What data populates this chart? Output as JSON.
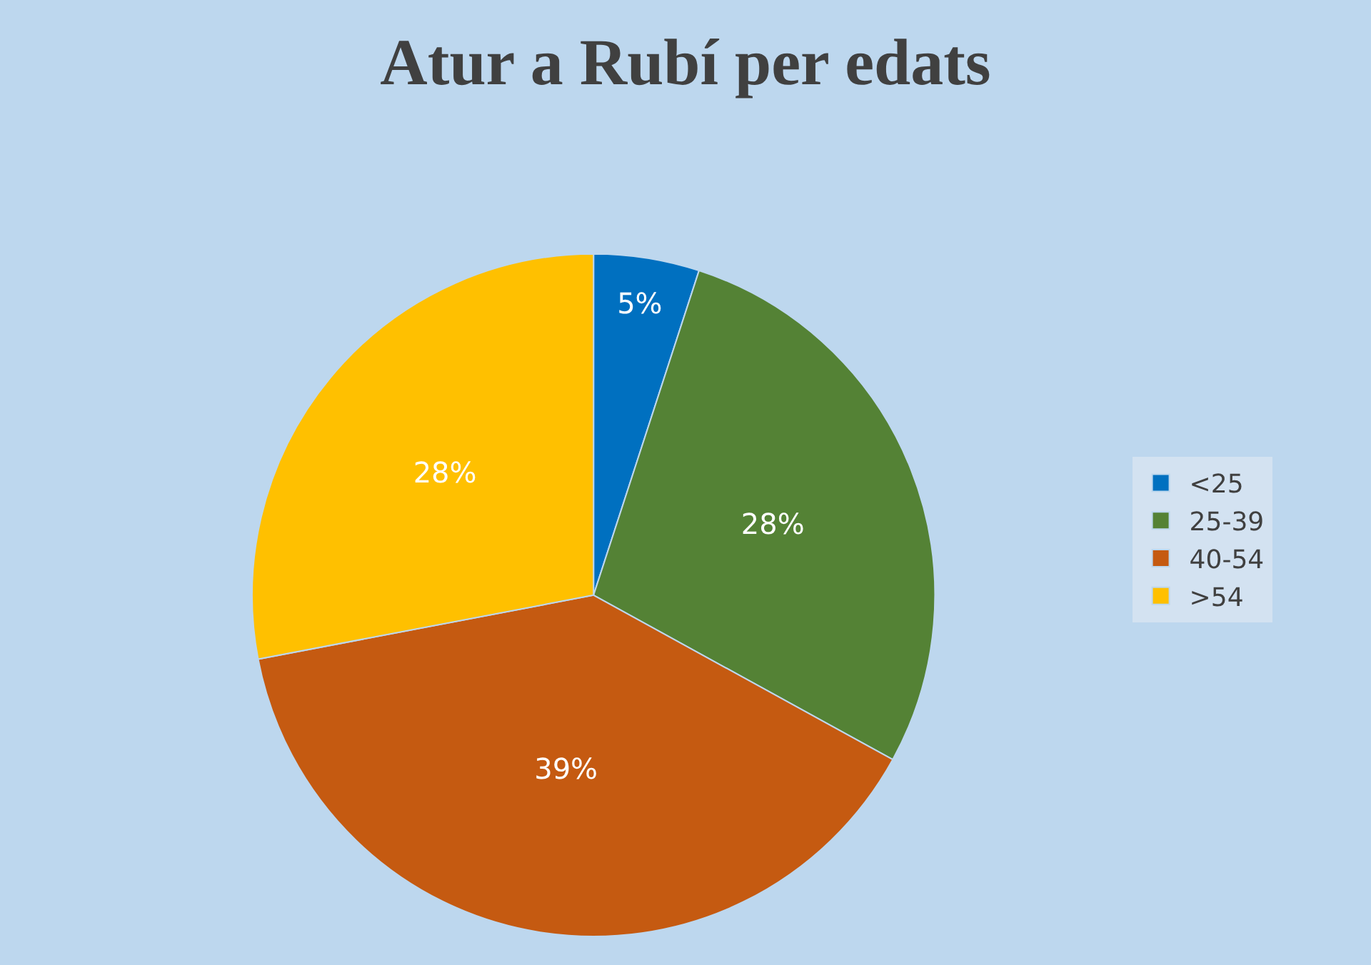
{
  "chart_data": {
    "type": "pie",
    "title": "Atur a Rubí per edats",
    "categories": [
      "<25",
      "25-39",
      "40-54",
      ">54"
    ],
    "values": [
      5,
      28,
      39,
      28
    ],
    "colors": [
      "#0070c0",
      "#548235",
      "#c55a11",
      "#ffc000"
    ],
    "value_labels": [
      "5%",
      "28%",
      "39%",
      "28%"
    ],
    "legend": "right"
  }
}
